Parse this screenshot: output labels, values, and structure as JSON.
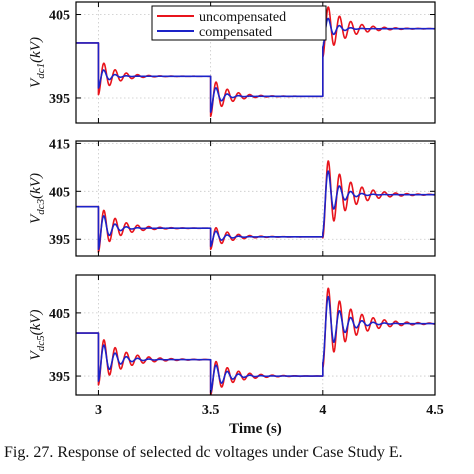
{
  "figure": {
    "caption": "Fig. 27. Response of selected dc voltages under Case Study E."
  },
  "chart_data": [
    {
      "type": "line",
      "panel": "top",
      "ylabel_main": "V",
      "ylabel_sub": "dc1",
      "ylabel_unit": "(kV)",
      "xlim": [
        2.9,
        4.5
      ],
      "ylim": [
        392,
        406.5
      ],
      "yticks": [
        395,
        405
      ],
      "ytick_labels": [
        "395",
        "405"
      ],
      "grid": "dotted",
      "legend": "top-center",
      "series": [
        {
          "name": "uncompensated",
          "color": "#e8141c",
          "segments": [
            {
              "t0": 2.9,
              "t1": 3.0,
              "v": 401.6
            },
            {
              "t0": 3.0,
              "t1": 3.5,
              "v": 397.6,
              "amp": 2.2,
              "decay": 14,
              "period": 0.05
            },
            {
              "t0": 3.5,
              "t1": 4.0,
              "v": 395.2,
              "amp": 2.4,
              "decay": 14,
              "period": 0.05
            },
            {
              "t0": 4.0,
              "t1": 4.5,
              "v": 403.3,
              "amp": 3.4,
              "decay": 11,
              "period": 0.05
            }
          ]
        },
        {
          "name": "compensated",
          "color": "#1c23c8",
          "segments": [
            {
              "t0": 2.9,
              "t1": 3.0,
              "v": 401.6
            },
            {
              "t0": 3.0,
              "t1": 3.5,
              "v": 397.6,
              "amp": 1.4,
              "decay": 26,
              "period": 0.05
            },
            {
              "t0": 3.5,
              "t1": 4.0,
              "v": 395.2,
              "amp": 1.9,
              "decay": 26,
              "period": 0.05
            },
            {
              "t0": 4.0,
              "t1": 4.5,
              "v": 403.3,
              "amp": 2.2,
              "decay": 24,
              "period": 0.05
            }
          ]
        }
      ]
    },
    {
      "type": "line",
      "panel": "middle",
      "ylabel_main": "V",
      "ylabel_sub": "dc3",
      "ylabel_unit": "(kV)",
      "xlim": [
        2.9,
        4.5
      ],
      "ylim": [
        391.5,
        415.5
      ],
      "yticks": [
        395,
        405,
        415
      ],
      "ytick_labels": [
        "395",
        "405",
        "415"
      ],
      "grid": "dotted",
      "series": [
        {
          "name": "uncompensated",
          "color": "#e8141c",
          "segments": [
            {
              "t0": 2.9,
              "t1": 3.0,
              "v": 401.8
            },
            {
              "t0": 3.0,
              "t1": 3.5,
              "v": 397.3,
              "amp": 5.0,
              "decay": 12,
              "period": 0.05
            },
            {
              "t0": 3.5,
              "t1": 4.0,
              "v": 395.5,
              "amp": 2.6,
              "decay": 13,
              "period": 0.05
            },
            {
              "t0": 4.0,
              "t1": 4.5,
              "v": 404.3,
              "amp": 9.0,
              "decay": 10,
              "period": 0.05
            }
          ]
        },
        {
          "name": "compensated",
          "color": "#1c23c8",
          "segments": [
            {
              "t0": 2.9,
              "t1": 3.0,
              "v": 401.8
            },
            {
              "t0": 3.0,
              "t1": 3.5,
              "v": 397.3,
              "amp": 4.4,
              "decay": 22,
              "period": 0.05
            },
            {
              "t0": 3.5,
              "t1": 4.0,
              "v": 395.5,
              "amp": 2.0,
              "decay": 22,
              "period": 0.05
            },
            {
              "t0": 4.0,
              "t1": 4.5,
              "v": 404.3,
              "amp": 8.0,
              "decay": 20,
              "period": 0.05
            }
          ]
        }
      ]
    },
    {
      "type": "line",
      "panel": "bottom",
      "ylabel_main": "V",
      "ylabel_sub": "dc5",
      "ylabel_unit": "(kV)",
      "xlabel": "Time (s)",
      "xlim": [
        2.9,
        4.5
      ],
      "xticks": [
        3,
        3.5,
        4,
        4.5
      ],
      "xtick_labels": [
        "3",
        "3.5",
        "4",
        "4.5"
      ],
      "ylim": [
        392,
        411
      ],
      "yticks": [
        395,
        405
      ],
      "ytick_labels": [
        "395",
        "405"
      ],
      "grid": "dotted",
      "series": [
        {
          "name": "uncompensated",
          "color": "#e8141c",
          "segments": [
            {
              "t0": 2.9,
              "t1": 3.0,
              "v": 401.8
            },
            {
              "t0": 3.0,
              "t1": 3.5,
              "v": 397.6,
              "amp": 4.0,
              "decay": 10,
              "period": 0.05
            },
            {
              "t0": 3.5,
              "t1": 4.0,
              "v": 395.0,
              "amp": 3.0,
              "decay": 11,
              "period": 0.05
            },
            {
              "t0": 4.0,
              "t1": 4.5,
              "v": 403.3,
              "amp": 7.0,
              "decay": 9,
              "period": 0.05
            }
          ]
        },
        {
          "name": "compensated",
          "color": "#1c23c8",
          "segments": [
            {
              "t0": 2.9,
              "t1": 3.0,
              "v": 401.8
            },
            {
              "t0": 3.0,
              "t1": 3.5,
              "v": 397.6,
              "amp": 3.4,
              "decay": 16,
              "period": 0.05
            },
            {
              "t0": 3.5,
              "t1": 4.0,
              "v": 395.0,
              "amp": 2.6,
              "decay": 17,
              "period": 0.05
            },
            {
              "t0": 4.0,
              "t1": 4.5,
              "v": 403.3,
              "amp": 6.2,
              "decay": 15,
              "period": 0.05
            }
          ]
        }
      ]
    }
  ]
}
